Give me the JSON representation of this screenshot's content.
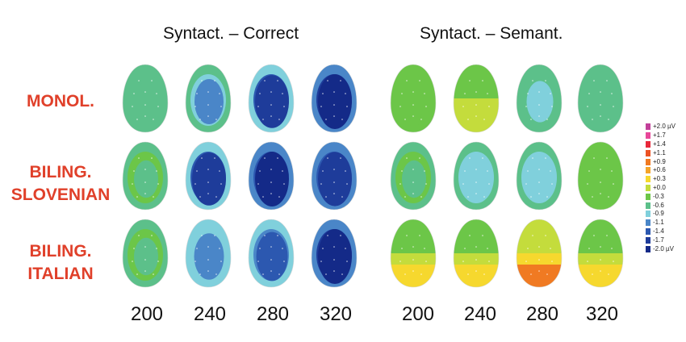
{
  "panels": [
    {
      "title": "Syntact. – Correct"
    },
    {
      "title": "Syntact. – Semant."
    }
  ],
  "rows": [
    {
      "lines": [
        "MONOL."
      ]
    },
    {
      "lines": [
        "BILING.",
        "SLOVENIAN"
      ]
    },
    {
      "lines": [
        "BILING.",
        "ITALIAN"
      ]
    }
  ],
  "time_labels": [
    "200",
    "240",
    "280",
    "320"
  ],
  "legend": [
    {
      "label": "+2.0 µV",
      "color": "#c2409a"
    },
    {
      "label": "+1.7",
      "color": "#e8489a"
    },
    {
      "label": "+1.4",
      "color": "#e8283a"
    },
    {
      "label": "+1.1",
      "color": "#ec5224"
    },
    {
      "label": "+0.9",
      "color": "#f07a22"
    },
    {
      "label": "+0.6",
      "color": "#f4a42a"
    },
    {
      "label": "+0.3",
      "color": "#f6d82e"
    },
    {
      "label": "+0.0",
      "color": "#c4dc3c"
    },
    {
      "label": "-0.3",
      "color": "#6cc648"
    },
    {
      "label": "-0.6",
      "color": "#5cc08a"
    },
    {
      "label": "-0.9",
      "color": "#80d0dc"
    },
    {
      "label": "-1.1",
      "color": "#4a86c8"
    },
    {
      "label": "-1.4",
      "color": "#2c58b0"
    },
    {
      "label": "-1.7",
      "color": "#1e3c9a"
    },
    {
      "label": "-2.0 µV",
      "color": "#142a88"
    }
  ],
  "colors": {
    "row_label": "#e0402a",
    "positive": "#f6d82e",
    "neutral": "#6cc648",
    "negative": "#1e3c9a"
  },
  "maps": [
    {
      "panel": 0,
      "row": 0,
      "time": "200",
      "level": -0.5
    },
    {
      "panel": 0,
      "row": 0,
      "time": "240",
      "level": -1.0
    },
    {
      "panel": 0,
      "row": 0,
      "time": "280",
      "level": -1.6
    },
    {
      "panel": 0,
      "row": 0,
      "time": "320",
      "level": -1.9
    },
    {
      "panel": 1,
      "row": 0,
      "time": "200",
      "level": -0.2
    },
    {
      "panel": 1,
      "row": 0,
      "time": "240",
      "level": 0.1
    },
    {
      "panel": 1,
      "row": 0,
      "time": "280",
      "level": -0.7
    },
    {
      "panel": 1,
      "row": 0,
      "time": "320",
      "level": -0.5
    },
    {
      "panel": 0,
      "row": 1,
      "time": "200",
      "level": -0.4
    },
    {
      "panel": 0,
      "row": 1,
      "time": "240",
      "level": -1.6
    },
    {
      "panel": 0,
      "row": 1,
      "time": "280",
      "level": -1.8
    },
    {
      "panel": 0,
      "row": 1,
      "time": "320",
      "level": -1.7
    },
    {
      "panel": 1,
      "row": 1,
      "time": "200",
      "level": -0.4
    },
    {
      "panel": 1,
      "row": 1,
      "time": "240",
      "level": -0.9
    },
    {
      "panel": 1,
      "row": 1,
      "time": "280",
      "level": -0.9
    },
    {
      "panel": 1,
      "row": 1,
      "time": "320",
      "level": -0.2
    },
    {
      "panel": 0,
      "row": 2,
      "time": "200",
      "level": -0.4
    },
    {
      "panel": 0,
      "row": 2,
      "time": "240",
      "level": -1.1
    },
    {
      "panel": 0,
      "row": 2,
      "time": "280",
      "level": -1.3
    },
    {
      "panel": 0,
      "row": 2,
      "time": "320",
      "level": -1.9
    },
    {
      "panel": 1,
      "row": 2,
      "time": "200",
      "level": 0.2
    },
    {
      "panel": 1,
      "row": 2,
      "time": "240",
      "level": 0.3
    },
    {
      "panel": 1,
      "row": 2,
      "time": "280",
      "level": 0.6
    },
    {
      "panel": 1,
      "row": 2,
      "time": "320",
      "level": 0.2
    }
  ]
}
